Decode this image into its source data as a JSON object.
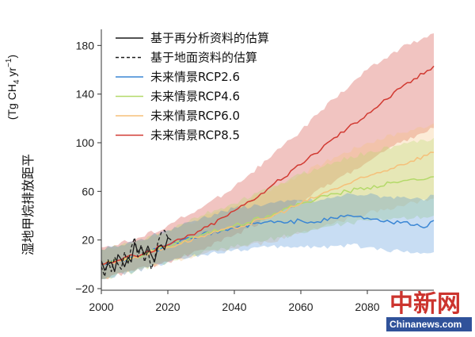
{
  "chart_data": {
    "type": "line",
    "title": "",
    "xlabel": "",
    "ylabel": "湿地甲烷排放距平",
    "yunit_parts": [
      "(Tg CH",
      "4",
      " yr",
      "−1",
      ")"
    ],
    "xlim": [
      2000,
      2100
    ],
    "ylim": [
      -20,
      190
    ],
    "xticks": [
      2000,
      2020,
      2040,
      2060,
      2080
    ],
    "yticks": [
      -20,
      20,
      60,
      100,
      140,
      180
    ],
    "ytick_labels": [
      "−20",
      "20",
      "60",
      "100",
      "140",
      "180"
    ],
    "legend_position": "top-left",
    "series": [
      {
        "name": "基于再分析资料的估算",
        "color": "#1a1a1a",
        "dash": "solid",
        "x": [
          2000,
          2001,
          2002,
          2003,
          2004,
          2005,
          2006,
          2007,
          2008,
          2009,
          2010,
          2011,
          2012,
          2013,
          2014,
          2015,
          2016,
          2017,
          2018,
          2019,
          2020,
          2021
        ],
        "y": [
          3,
          -5,
          0,
          2,
          -6,
          8,
          4,
          -2,
          6,
          2,
          18,
          10,
          14,
          8,
          15,
          8,
          2,
          14,
          16,
          12,
          22,
          20
        ]
      },
      {
        "name": "基于地面资料的估算",
        "color": "#1a1a1a",
        "dash": "dashed",
        "x": [
          2000,
          2001,
          2002,
          2003,
          2004,
          2005,
          2006,
          2007,
          2008,
          2009,
          2010,
          2011,
          2012,
          2013,
          2014,
          2015,
          2016,
          2017,
          2018,
          2019,
          2020
        ],
        "y": [
          -2,
          -10,
          4,
          -6,
          6,
          0,
          -4,
          10,
          0,
          14,
          22,
          6,
          16,
          2,
          12,
          -4,
          4,
          18,
          26,
          28,
          22
        ]
      },
      {
        "name": "未来情景RCP2.6",
        "color": "#3a86d4",
        "dash": "solid",
        "x": [
          2000,
          2010,
          2020,
          2030,
          2040,
          2050,
          2055,
          2060,
          2065,
          2070,
          2075,
          2080,
          2085,
          2090,
          2095,
          2098,
          2100
        ],
        "y": [
          0,
          6,
          15,
          24,
          30,
          35,
          34,
          36,
          35,
          38,
          40,
          38,
          35,
          34,
          33,
          31,
          36
        ],
        "band_low": [
          -12,
          -6,
          2,
          8,
          12,
          14,
          14,
          15,
          14,
          15,
          16,
          14,
          12,
          11,
          10,
          9,
          10
        ],
        "band_high": [
          12,
          18,
          28,
          38,
          46,
          50,
          51,
          53,
          52,
          55,
          58,
          57,
          56,
          55,
          55,
          54,
          57
        ]
      },
      {
        "name": "未来情景RCP4.6",
        "color": "#b4d96a",
        "dash": "solid",
        "x": [
          2000,
          2010,
          2020,
          2030,
          2040,
          2050,
          2060,
          2070,
          2080,
          2090,
          2100
        ],
        "y": [
          0,
          6,
          15,
          24,
          32,
          40,
          50,
          58,
          63,
          68,
          72
        ],
        "band_low": [
          -12,
          -6,
          2,
          9,
          14,
          20,
          26,
          32,
          36,
          38,
          40
        ],
        "band_high": [
          12,
          18,
          28,
          40,
          50,
          62,
          74,
          84,
          92,
          98,
          104
        ]
      },
      {
        "name": "未来情景RCP6.0",
        "color": "#f5c07a",
        "dash": "solid",
        "x": [
          2000,
          2010,
          2020,
          2030,
          2040,
          2050,
          2060,
          2070,
          2080,
          2090,
          2100
        ],
        "y": [
          0,
          6,
          14,
          23,
          30,
          38,
          50,
          62,
          72,
          82,
          92
        ],
        "band_low": [
          -12,
          -6,
          2,
          8,
          13,
          18,
          26,
          34,
          42,
          48,
          54
        ],
        "band_high": [
          12,
          18,
          27,
          38,
          48,
          60,
          74,
          88,
          100,
          108,
          116
        ]
      },
      {
        "name": "未来情景RCP8.5",
        "color": "#d13a32",
        "dash": "solid",
        "x": [
          2000,
          2010,
          2020,
          2030,
          2040,
          2050,
          2060,
          2070,
          2080,
          2090,
          2100
        ],
        "y": [
          0,
          7,
          16,
          28,
          44,
          62,
          82,
          104,
          124,
          145,
          163
        ],
        "band_low": [
          -12,
          -5,
          2,
          12,
          24,
          38,
          52,
          68,
          84,
          100,
          112
        ],
        "band_high": [
          14,
          20,
          32,
          46,
          64,
          86,
          110,
          136,
          160,
          178,
          190
        ]
      }
    ]
  },
  "watermark": {
    "logo_text": "中新网",
    "site": "Chinanews.com"
  }
}
